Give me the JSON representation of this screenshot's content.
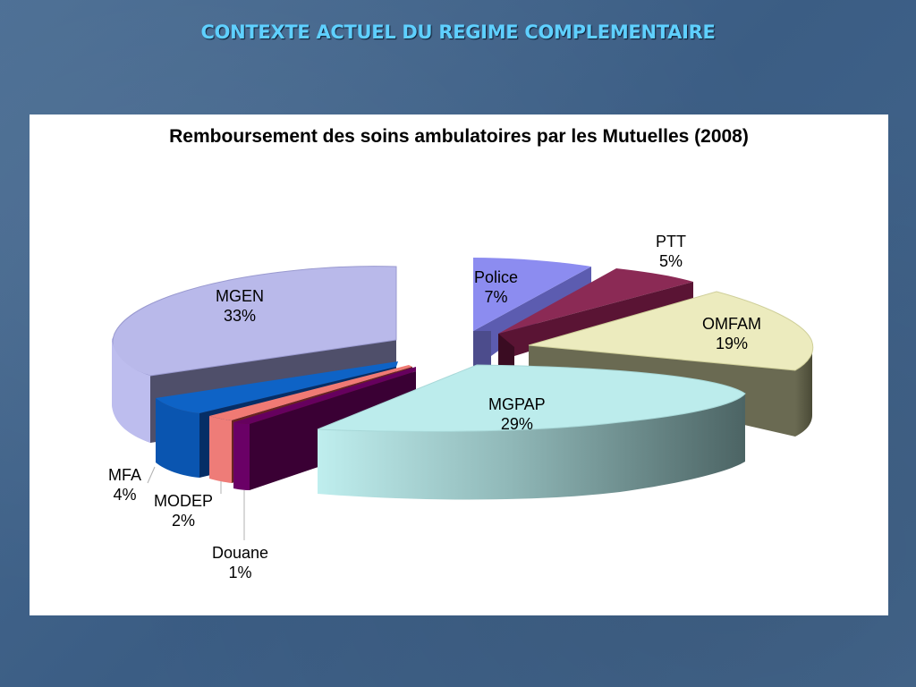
{
  "slide": {
    "title": "CONTEXTE ACTUEL DU REGIME COMPLEMENTAIRE"
  },
  "chart_data": {
    "type": "pie",
    "title": "Remboursement des soins ambulatoires par les Mutuelles (2008)",
    "slices": [
      {
        "name": "MGEN",
        "label": "33%",
        "value": 33,
        "color": "#b9b9ea"
      },
      {
        "name": "Police",
        "label": "7%",
        "value": 7,
        "color": "#8c8cf0"
      },
      {
        "name": "PTT",
        "label": "5%",
        "value": 5,
        "color": "#8b2a55"
      },
      {
        "name": "OMFAM",
        "label": "19%",
        "value": 19,
        "color": "#ecebbe"
      },
      {
        "name": "MGPAP",
        "label": "29%",
        "value": 29,
        "color": "#bcecec"
      },
      {
        "name": "Douane",
        "label": "1%",
        "value": 1,
        "color": "#66005e"
      },
      {
        "name": "MODEP",
        "label": "2%",
        "value": 2,
        "color": "#f07a74"
      },
      {
        "name": "MFA",
        "label": "4%",
        "value": 4,
        "color": "#0e63c6"
      }
    ],
    "style": "3d exploded pie",
    "legend": "none"
  }
}
